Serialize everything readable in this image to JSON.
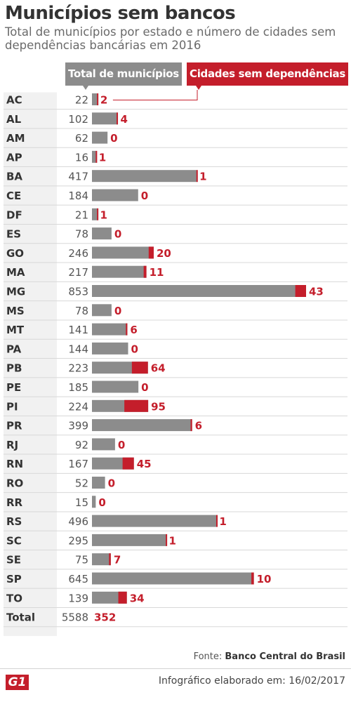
{
  "title": "Municípios sem bancos",
  "subtitle": "Total de municípios por estado e número de cidades sem dependências bancárias em 2016",
  "legend": {
    "total_label": "Total de municípios",
    "without_label": "Cidades sem dependências"
  },
  "colors": {
    "total": "#8c8c8c",
    "without": "#c41e2b",
    "label_row_bg": "#f1f1f1",
    "row_line": "#d8d8d8"
  },
  "chart_data": {
    "type": "bar",
    "categories": [
      "AC",
      "AL",
      "AM",
      "AP",
      "BA",
      "CE",
      "DF",
      "ES",
      "GO",
      "MA",
      "MG",
      "MS",
      "MT",
      "PA",
      "PB",
      "PE",
      "PI",
      "PR",
      "RJ",
      "RN",
      "RO",
      "RR",
      "RS",
      "SC",
      "SE",
      "SP",
      "TO"
    ],
    "series": [
      {
        "name": "Total de municípios",
        "values": [
          22,
          102,
          62,
          16,
          417,
          184,
          21,
          78,
          246,
          217,
          853,
          78,
          141,
          144,
          223,
          185,
          224,
          399,
          92,
          167,
          52,
          15,
          496,
          295,
          75,
          645,
          139
        ]
      },
      {
        "name": "Cidades sem dependências",
        "values": [
          2,
          4,
          0,
          1,
          1,
          0,
          1,
          0,
          20,
          11,
          43,
          0,
          6,
          0,
          64,
          0,
          95,
          6,
          0,
          45,
          0,
          0,
          1,
          1,
          7,
          10,
          34
        ]
      }
    ],
    "total": {
      "label": "Total",
      "total_municipios": 5588,
      "sem_dependencias": 352
    }
  },
  "source": {
    "prefix": "Fonte:",
    "name": "Banco Central do Brasil"
  },
  "credit": "Infográfico elaborado em: 16/02/2017",
  "logo_text": "G1"
}
